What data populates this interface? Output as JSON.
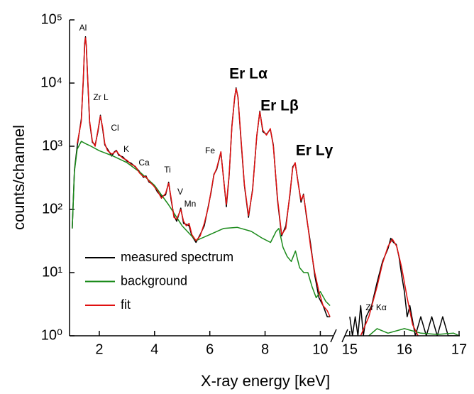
{
  "chart_data": {
    "type": "line",
    "x_label": "X-ray energy [keV]",
    "y_label": "counts/channel",
    "log_y": true,
    "ylim": [
      1,
      100000
    ],
    "yticks": [
      {
        "value": 1,
        "label": "10⁰"
      },
      {
        "value": 10,
        "label": "10¹"
      },
      {
        "value": 100,
        "label": "10²"
      },
      {
        "value": 1000,
        "label": "10³"
      },
      {
        "value": 10000,
        "label": "10⁴"
      },
      {
        "value": 100000,
        "label": "10⁵"
      }
    ],
    "x_segments": [
      {
        "xlim": [
          1.0,
          10.4
        ],
        "xticks": [
          2,
          4,
          6,
          8,
          10
        ]
      },
      {
        "xlim": [
          14.95,
          17.0
        ],
        "xticks": [
          15,
          16,
          17
        ]
      }
    ],
    "legend": "lower left",
    "series": [
      {
        "name": "measured spectrum",
        "color": "#000000",
        "x": [
          1.02,
          1.1,
          1.2,
          1.35,
          1.42,
          1.47,
          1.5,
          1.53,
          1.58,
          1.65,
          1.75,
          1.85,
          1.95,
          2.04,
          2.12,
          2.2,
          2.3,
          2.45,
          2.55,
          2.62,
          2.7,
          2.85,
          3.0,
          3.15,
          3.31,
          3.45,
          3.6,
          3.69,
          3.8,
          3.95,
          4.1,
          4.25,
          4.4,
          4.51,
          4.6,
          4.7,
          4.8,
          4.95,
          5.05,
          5.15,
          5.25,
          5.35,
          5.5,
          5.65,
          5.8,
          5.95,
          6.05,
          6.15,
          6.25,
          6.4,
          6.5,
          6.6,
          6.7,
          6.8,
          6.9,
          6.95,
          7.02,
          7.12,
          7.25,
          7.4,
          7.55,
          7.7,
          7.81,
          7.92,
          8.05,
          8.19,
          8.3,
          8.45,
          8.6,
          8.75,
          8.9,
          9.0,
          9.09,
          9.2,
          9.3,
          9.39,
          9.5,
          9.65,
          9.8,
          9.95,
          10.1,
          10.25,
          10.35,
          15.0,
          15.05,
          15.1,
          15.15,
          15.2,
          15.25,
          15.3,
          15.4,
          15.5,
          15.6,
          15.7,
          15.75,
          15.8,
          15.85,
          15.9,
          15.95,
          16.0,
          16.05,
          16.1,
          16.2,
          16.3,
          16.4,
          16.5,
          16.6,
          16.7,
          16.8,
          16.9,
          17.0
        ],
        "values": [
          50,
          420,
          1000,
          2700,
          11000,
          42000,
          54000,
          38000,
          11500,
          2400,
          1150,
          1050,
          1700,
          3100,
          1900,
          1050,
          900,
          700,
          820,
          860,
          720,
          680,
          580,
          540,
          470,
          400,
          320,
          340,
          270,
          250,
          190,
          160,
          170,
          270,
          140,
          80,
          65,
          105,
          60,
          58,
          55,
          38,
          30,
          40,
          55,
          115,
          190,
          360,
          430,
          800,
          310,
          110,
          340,
          2100,
          5800,
          8400,
          5900,
          1400,
          240,
          75,
          210,
          1450,
          3600,
          1700,
          1550,
          1850,
          1050,
          140,
          38,
          55,
          170,
          470,
          540,
          260,
          130,
          175,
          75,
          28,
          9,
          4,
          3,
          2,
          2,
          2,
          1,
          2,
          1,
          3,
          1,
          2,
          3,
          7,
          15,
          24,
          35,
          30,
          28,
          18,
          9,
          5,
          2,
          3,
          1,
          2,
          1,
          2,
          1,
          2,
          1,
          1,
          1
        ]
      },
      {
        "name": "background",
        "color": "#1a8a1a",
        "x": [
          1.02,
          1.1,
          1.2,
          1.35,
          1.5,
          1.7,
          2.0,
          2.5,
          3.0,
          3.5,
          4.0,
          4.5,
          5.0,
          5.5,
          6.0,
          6.5,
          7.0,
          7.5,
          7.9,
          8.2,
          8.4,
          8.5,
          8.65,
          8.8,
          8.95,
          9.1,
          9.25,
          9.4,
          9.55,
          9.7,
          9.85,
          10.0,
          10.2,
          10.35,
          15.2,
          15.35,
          15.5,
          15.7,
          16.0,
          16.3,
          16.6,
          16.9,
          17.0
        ],
        "values": [
          50,
          400,
          900,
          1200,
          1100,
          1000,
          850,
          700,
          550,
          380,
          240,
          120,
          55,
          32,
          40,
          50,
          52,
          45,
          35,
          30,
          45,
          50,
          25,
          18,
          15,
          22,
          12,
          10,
          10,
          6,
          4,
          5,
          3.5,
          3,
          0.8,
          1.0,
          1.3,
          1.1,
          1.3,
          1.1,
          1.05,
          1.1,
          1.0
        ]
      },
      {
        "name": "fit",
        "color": "#e01010",
        "x": [
          1.2,
          1.35,
          1.42,
          1.47,
          1.5,
          1.53,
          1.58,
          1.65,
          1.75,
          1.85,
          1.95,
          2.04,
          2.12,
          2.2,
          2.3,
          2.45,
          2.55,
          2.62,
          2.7,
          2.85,
          3.0,
          3.15,
          3.31,
          3.45,
          3.6,
          3.69,
          3.8,
          3.95,
          4.1,
          4.25,
          4.4,
          4.51,
          4.6,
          4.7,
          4.8,
          4.95,
          5.05,
          5.15,
          5.25,
          5.35,
          5.5,
          5.65,
          5.8,
          5.95,
          6.05,
          6.15,
          6.25,
          6.4,
          6.5,
          6.6,
          6.7,
          6.8,
          6.9,
          6.95,
          7.02,
          7.12,
          7.25,
          7.4,
          7.55,
          7.7,
          7.81,
          7.92,
          8.05,
          8.19,
          8.3,
          8.45,
          8.6,
          8.75,
          8.9,
          9.0,
          9.09,
          9.2,
          9.3,
          9.39,
          9.5,
          9.65,
          9.8,
          9.95,
          10.1,
          10.25,
          10.35,
          15.2,
          15.35,
          15.5,
          15.6,
          15.7,
          15.78,
          15.86,
          15.95,
          16.05,
          16.15,
          16.25
        ],
        "values": [
          1100,
          2500,
          12000,
          40000,
          52000,
          40000,
          12000,
          2500,
          1200,
          1000,
          1800,
          3000,
          2000,
          1100,
          850,
          750,
          800,
          850,
          750,
          650,
          600,
          520,
          480,
          380,
          330,
          330,
          280,
          240,
          200,
          150,
          180,
          260,
          150,
          75,
          70,
          100,
          65,
          55,
          60,
          40,
          32,
          38,
          60,
          110,
          200,
          350,
          450,
          820,
          300,
          120,
          350,
          2000,
          6000,
          8200,
          6000,
          1500,
          250,
          80,
          200,
          1500,
          3500,
          1800,
          1500,
          1900,
          1000,
          150,
          40,
          50,
          180,
          450,
          550,
          250,
          140,
          170,
          80,
          25,
          10,
          5,
          3,
          2.5,
          2,
          1,
          2,
          6,
          14,
          26,
          34,
          26,
          12,
          4,
          1.5,
          1
        ]
      }
    ],
    "annotations": [
      {
        "text": "Al",
        "color": "#000000"
      },
      {
        "text": "Zr L",
        "color": "#000000"
      },
      {
        "text": "Cl",
        "color": "#000000"
      },
      {
        "text": "K",
        "color": "#000000"
      },
      {
        "text": "Ca",
        "color": "#000000"
      },
      {
        "text": "Ti",
        "color": "#000000"
      },
      {
        "text": "V",
        "color": "#000000"
      },
      {
        "text": "Mn",
        "color": "#000000"
      },
      {
        "text": "Fe",
        "color": "#000000"
      },
      {
        "text": "Er Lα",
        "color": "#1a1aee"
      },
      {
        "text": "Er Lβ",
        "color": "#1a1aee"
      },
      {
        "text": "Er Lγ",
        "color": "#1a1aee"
      },
      {
        "text": "Zr Kα",
        "color": "#000000"
      }
    ]
  }
}
